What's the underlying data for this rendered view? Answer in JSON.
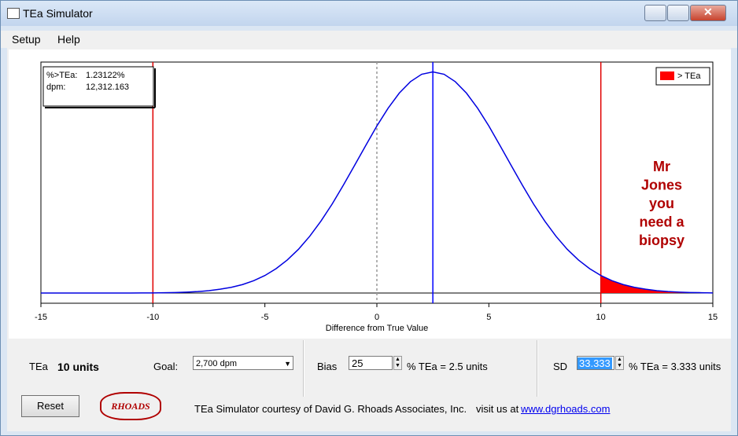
{
  "window": {
    "title": "TEa Simulator"
  },
  "menu": [
    "Setup",
    "Help"
  ],
  "chart_data": {
    "type": "line",
    "xlabel": "Difference from True Value",
    "xlim": [
      -15,
      15
    ],
    "xticks": [
      -15,
      -10,
      -5,
      0,
      5,
      10,
      15
    ],
    "ylim": [
      -0.0055,
      0.125
    ],
    "series": [
      {
        "color": "#0000e0",
        "x": [
          -15,
          -14.5,
          -14,
          -13.5,
          -13,
          -12.5,
          -12,
          -11.5,
          -11,
          -10.5,
          -10,
          -9.5,
          -9,
          -8.5,
          -8,
          -7.5,
          -7,
          -6.5,
          -6,
          -5.5,
          -5,
          -4.5,
          -4,
          -3.5,
          -3,
          -2.5,
          -2,
          -1.5,
          -1,
          -0.5,
          0,
          0.5,
          1,
          1.5,
          2,
          2.5,
          3,
          3.5,
          4,
          4.5,
          5,
          5.5,
          6,
          6.5,
          7,
          7.5,
          8,
          8.5,
          9,
          9.5,
          10,
          10.5,
          11,
          11.5,
          12,
          12.5,
          13,
          13.5,
          14,
          14.5,
          15
        ],
        "values": [
          0,
          0,
          0,
          0,
          0,
          0,
          0,
          0,
          0,
          0.0001,
          0.0001,
          0.0002,
          0.0003,
          0.0005,
          0.0008,
          0.0013,
          0.0021,
          0.0031,
          0.0046,
          0.0067,
          0.0095,
          0.0132,
          0.0179,
          0.0237,
          0.0307,
          0.0389,
          0.0481,
          0.0583,
          0.069,
          0.0798,
          0.0904,
          0.1,
          0.1082,
          0.1144,
          0.1184,
          0.1197,
          0.1184,
          0.1144,
          0.1082,
          0.1,
          0.0904,
          0.0798,
          0.069,
          0.0583,
          0.0481,
          0.0389,
          0.0307,
          0.0237,
          0.0179,
          0.0132,
          0.0095,
          0.0067,
          0.0046,
          0.0031,
          0.0021,
          0.0013,
          0.0008,
          0.0005,
          0.0003,
          0.0002,
          0.0001
        ]
      }
    ],
    "shade": {
      "label": "> TEa",
      "from": 10,
      "color": "#ff0000"
    },
    "reference_lines": [
      {
        "x": -10,
        "color": "#e00000"
      },
      {
        "x": 10,
        "color": "#e00000"
      },
      {
        "x": 2.5,
        "color": "#0000ff"
      },
      {
        "x": 0,
        "color": "#999999",
        "dashed": true
      }
    ],
    "info": [
      {
        "label": "%>TEa:",
        "value": "1.23122%"
      },
      {
        "label": "dpm:",
        "value": "12,312.163"
      }
    ],
    "annotation": {
      "lines": [
        "Mr",
        "Jones",
        "you",
        "need a",
        "biopsy"
      ],
      "color": "#b00000"
    }
  },
  "controls": {
    "tea_label": "TEa",
    "tea_value": "10 units",
    "goal_label": "Goal:",
    "goal_value": "2,700 dpm",
    "bias_label": "Bias",
    "bias_value": "25",
    "bias_text": "% TEa = 2.5 units",
    "sd_label": "SD",
    "sd_value": "33.333",
    "sd_text": "% TEa = 3.333 units",
    "reset": "Reset",
    "logo": "RHOADS",
    "credit": "TEa Simulator courtesy of David G. Rhoads Associates, Inc.",
    "visit": "visit us at",
    "link": "www.dgrhoads.com"
  }
}
